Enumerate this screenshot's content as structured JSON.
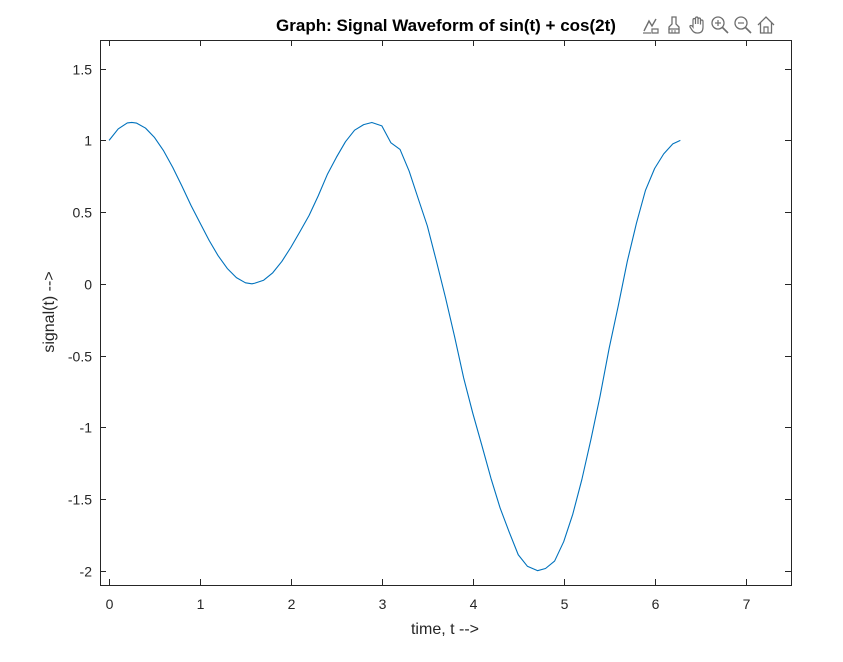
{
  "toolbar": {
    "items": [
      {
        "name": "data-tips-icon"
      },
      {
        "name": "brush-icon"
      },
      {
        "name": "pan-hand-icon"
      },
      {
        "name": "zoom-in-icon"
      },
      {
        "name": "zoom-out-icon"
      },
      {
        "name": "home-icon"
      }
    ],
    "icon_color": "#6e6e6e"
  },
  "chart_data": {
    "type": "line",
    "title": "Graph: Signal Waveform of sin(t) + cos(2t)",
    "xlabel": "time, t -->",
    "ylabel": "signal(t) -->",
    "xlim": [
      -0.1,
      7.5
    ],
    "ylim": [
      -2.1,
      1.7
    ],
    "xticks": [
      0,
      1,
      2,
      3,
      4,
      5,
      6,
      7
    ],
    "xtick_labels": [
      "0",
      "1",
      "2",
      "3",
      "4",
      "5",
      "6",
      "7"
    ],
    "yticks": [
      -2,
      -1.5,
      -1,
      -0.5,
      0,
      0.5,
      1,
      1.5
    ],
    "ytick_labels": [
      "-2",
      "-1.5",
      "-1",
      "-0.5",
      "0",
      "0.5",
      "1",
      "1.5"
    ],
    "grid": false,
    "line_color": "#0072BD",
    "axis_color": "#262626",
    "series": [
      {
        "x": [
          0,
          0.1,
          0.2,
          0.25,
          0.3,
          0.4,
          0.5,
          0.6,
          0.7,
          0.8,
          0.9,
          1.0,
          1.1,
          1.2,
          1.3,
          1.4,
          1.5,
          1.571,
          1.6,
          1.7,
          1.8,
          1.9,
          2.0,
          2.1,
          2.2,
          2.3,
          2.4,
          2.5,
          2.6,
          2.7,
          2.8,
          2.89,
          3.0,
          3.1,
          3.2,
          3.3,
          3.4,
          3.5,
          3.6,
          3.7,
          3.8,
          3.9,
          4.0,
          4.1,
          4.2,
          4.3,
          4.4,
          4.5,
          4.6,
          4.712,
          4.8,
          4.9,
          5.0,
          5.1,
          5.2,
          5.3,
          5.4,
          5.5,
          5.6,
          5.7,
          5.8,
          5.9,
          6.0,
          6.1,
          6.2,
          6.283
        ],
        "y": [
          1.0,
          1.08,
          1.122,
          1.125,
          1.121,
          1.086,
          1.02,
          0.927,
          0.812,
          0.683,
          0.548,
          0.425,
          0.303,
          0.195,
          0.107,
          0.043,
          0.007,
          0.0,
          0.004,
          0.025,
          0.077,
          0.156,
          0.255,
          0.365,
          0.477,
          0.613,
          0.762,
          0.882,
          0.991,
          1.071,
          1.11,
          1.125,
          1.101,
          0.983,
          0.937,
          0.786,
          0.594,
          0.404,
          0.158,
          -0.096,
          -0.368,
          -0.657,
          -0.902,
          -1.127,
          -1.356,
          -1.562,
          -1.73,
          -1.889,
          -1.969,
          -2.0,
          -1.985,
          -1.933,
          -1.798,
          -1.606,
          -1.364,
          -1.084,
          -0.783,
          -0.449,
          -0.154,
          0.158,
          0.422,
          0.653,
          0.804,
          0.906,
          0.976,
          1.0
        ]
      }
    ]
  }
}
